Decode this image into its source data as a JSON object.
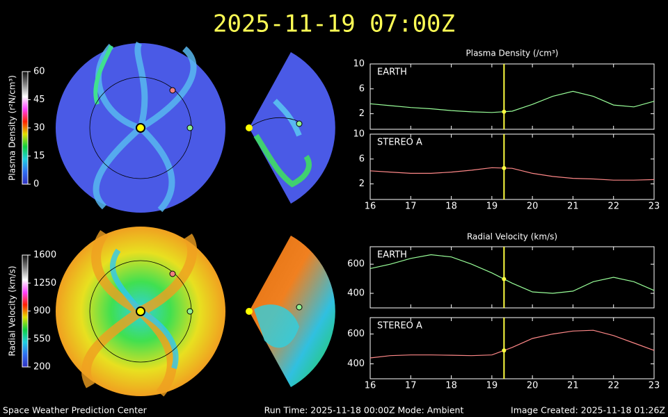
{
  "title": "2025-11-19 07:00Z",
  "footer": {
    "left": "Space Weather Prediction Center",
    "center": "Run Time: 2025-11-18 00:00Z  Mode: Ambient",
    "right": "Image Created: 2025-11-18 01:26Z"
  },
  "chart_data": [
    {
      "type": "colorbar",
      "label": "Plasma Density (r²N/cm³)",
      "ylim": [
        0,
        60
      ],
      "yticks": [
        0,
        15,
        30,
        45,
        60
      ],
      "colors": [
        "#3030c0",
        "#2f6ff0",
        "#20d0e0",
        "#10d040",
        "#e0e000",
        "#ff2000",
        "#ff40ff",
        "#ffffff",
        "#808080",
        "#101010"
      ]
    },
    {
      "type": "colorbar",
      "label": "Radial Velocity (km/s)",
      "ylim": [
        200,
        1600
      ],
      "yticks": [
        200,
        550,
        900,
        1250,
        1600
      ],
      "colors": [
        "#3030c0",
        "#2f6ff0",
        "#20d0e0",
        "#10d040",
        "#e0e000",
        "#ff2000",
        "#ff40ff",
        "#ffffff",
        "#808080",
        "#101010"
      ]
    },
    {
      "type": "line",
      "title": "Plasma Density (/cm³)",
      "x": [
        16,
        16.5,
        17,
        17.5,
        18,
        18.5,
        19,
        19.5,
        20,
        20.5,
        21,
        21.5,
        22,
        22.5,
        23
      ],
      "xlim": [
        16,
        23
      ],
      "xticks": [
        16,
        17,
        18,
        19,
        20,
        21,
        22,
        23
      ],
      "cursor": 19.3,
      "series": [
        {
          "name": "EARTH",
          "color": "#99ff99",
          "ylim": [
            -0.5,
            10
          ],
          "yticks": [
            2,
            6,
            10
          ],
          "values": [
            3.6,
            3.3,
            3.0,
            2.8,
            2.5,
            2.3,
            2.2,
            2.4,
            3.5,
            4.8,
            5.6,
            4.8,
            3.4,
            3.1,
            4.0
          ]
        },
        {
          "name": "STEREO A",
          "color": "#ff8888",
          "ylim": [
            -0.5,
            10
          ],
          "yticks": [
            2,
            6,
            10
          ],
          "values": [
            4.1,
            3.9,
            3.7,
            3.7,
            3.9,
            4.2,
            4.6,
            4.5,
            3.7,
            3.2,
            2.9,
            2.8,
            2.6,
            2.6,
            2.7
          ]
        }
      ]
    },
    {
      "type": "line",
      "title": "Radial Velocity (km/s)",
      "x": [
        16,
        16.5,
        17,
        17.5,
        18,
        18.5,
        19,
        19.5,
        20,
        20.5,
        21,
        21.5,
        22,
        22.5,
        23
      ],
      "xlim": [
        16,
        23
      ],
      "xticks": [
        16,
        17,
        18,
        19,
        20,
        21,
        22,
        23
      ],
      "cursor": 19.3,
      "series": [
        {
          "name": "EARTH",
          "color": "#99ff99",
          "ylim": [
            300,
            720
          ],
          "yticks": [
            400,
            600
          ],
          "values": [
            570,
            600,
            640,
            665,
            650,
            600,
            540,
            470,
            410,
            400,
            415,
            480,
            510,
            480,
            420
          ]
        },
        {
          "name": "STEREO A",
          "color": "#ff8888",
          "ylim": [
            300,
            710
          ],
          "yticks": [
            400,
            600
          ],
          "values": [
            440,
            455,
            460,
            460,
            458,
            455,
            460,
            510,
            570,
            600,
            620,
            625,
            590,
            540,
            490
          ]
        }
      ]
    }
  ]
}
